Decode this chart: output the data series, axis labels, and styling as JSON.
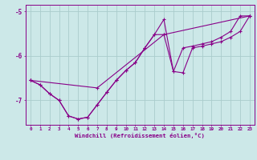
{
  "xlabel": "Windchill (Refroidissement éolien,°C)",
  "x": [
    0,
    1,
    2,
    3,
    4,
    5,
    6,
    7,
    8,
    9,
    10,
    11,
    12,
    13,
    14,
    15,
    16,
    17,
    18,
    19,
    20,
    21,
    22,
    23
  ],
  "line1": [
    -6.55,
    -6.65,
    -6.85,
    -7.0,
    -7.35,
    -7.42,
    -7.38,
    -7.1,
    -6.82,
    -6.55,
    -6.33,
    -6.15,
    -5.82,
    -5.52,
    -5.18,
    -6.35,
    -6.38,
    -5.82,
    -5.78,
    -5.73,
    -5.68,
    -5.58,
    -5.45,
    -5.1
  ],
  "line2": [
    -6.55,
    -6.65,
    -6.85,
    -7.0,
    -7.35,
    -7.42,
    -7.38,
    -7.1,
    -6.82,
    -6.55,
    -6.33,
    -6.15,
    -5.82,
    -5.52,
    -5.52,
    -6.35,
    -5.82,
    -5.78,
    -5.73,
    -5.68,
    -5.58,
    -5.45,
    -5.1,
    -5.1
  ],
  "line3_x": [
    0,
    7,
    14,
    23
  ],
  "line3_y": [
    -6.55,
    -6.72,
    -5.52,
    -5.1
  ],
  "ylim": [
    -7.55,
    -4.85
  ],
  "xlim": [
    -0.5,
    23.5
  ],
  "yticks": [
    -7,
    -6,
    -5
  ],
  "bg_color": "#cce8e8",
  "grid_color": "#aacccc",
  "line_color": "#880088",
  "marker": "+"
}
